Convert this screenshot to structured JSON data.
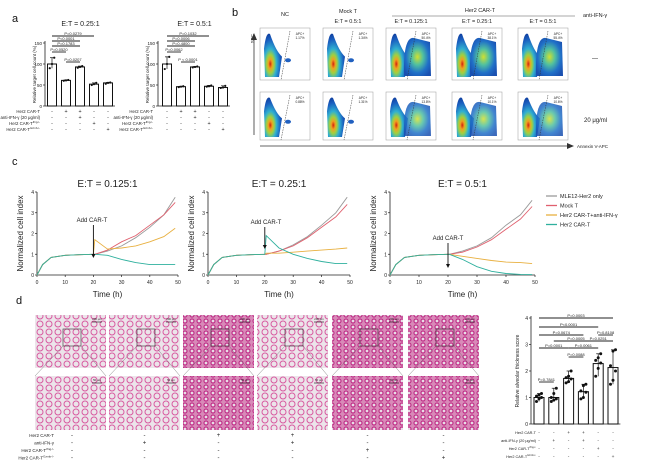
{
  "panels": {
    "a": {
      "label": "a"
    },
    "b": {
      "label": "b",
      "y_axis": "SSC",
      "x_axis": "Annexin V-APC",
      "col_headers": {
        "nc": "NC",
        "mock": "Mock T",
        "mock_et": "E:T = 0.5:1",
        "car": "Her2 CAR-T"
      },
      "car_et": [
        "E:T = 0.125:1",
        "E:T = 0.25:1",
        "E:T = 0.5:1"
      ],
      "row_header": "anti-IFN-γ",
      "rows": [
        "—",
        "20 μg/ml"
      ],
      "gate_label": "APC+",
      "percentages": [
        [
          "1.17%",
          "1.34%",
          "50.4%",
          "38.1%",
          "55.4%"
        ],
        [
          "0.88%",
          "1.31%",
          "13.8%",
          "10.1%",
          "10.6%"
        ]
      ]
    },
    "c": {
      "label": "c",
      "annotation": "Add CAR-T"
    },
    "d": {
      "label": "d",
      "scale_bars": [
        "200 μm",
        "50 μm"
      ],
      "rows": [
        {
          "label": "Her2 CAR-T",
          "signs": [
            "-",
            "-",
            "+",
            "+",
            "-",
            "-"
          ]
        },
        {
          "label": "anti-IFN-γ",
          "signs": [
            "-",
            "+",
            "-",
            "+",
            "-",
            "-"
          ]
        },
        {
          "label": "Her2 CAR-T",
          "sup": "Ifng-/-",
          "signs": [
            "-",
            "-",
            "-",
            "-",
            "+",
            "-"
          ]
        },
        {
          "label": "Her2 CAR-T",
          "sup": "Gzmb-/-",
          "signs": [
            "-",
            "-",
            "-",
            "-",
            "-",
            "+"
          ]
        }
      ]
    }
  },
  "colors": {
    "mle12": "#9a9a9a",
    "mock": "#e0606e",
    "antiifn": "#e8b040",
    "cart": "#2fb09e"
  },
  "chart_data": [
    {
      "id": "a-left",
      "type": "bar",
      "title": "E:T = 0.25:1",
      "ylabel": "Relative target cell count (%)",
      "ylim": [
        0,
        150
      ],
      "yticks": [
        0,
        50,
        100,
        150
      ],
      "values": [
        100,
        61,
        93,
        52,
        55
      ],
      "points": [
        [
          90,
          100,
          115
        ],
        [
          60,
          61,
          62
        ],
        [
          91,
          93,
          95
        ],
        [
          50,
          52,
          55
        ],
        [
          53,
          55,
          56
        ]
      ],
      "pvalues": [
        {
          "text": "P=0.0279",
          "from": 0,
          "to": 3
        },
        {
          "text": "P<0.0001",
          "from": 0,
          "to": 2
        },
        {
          "text": "P=0.1783",
          "from": 0,
          "to": 2
        },
        {
          "text": "P=0.0520",
          "from": 0,
          "to": 1
        },
        {
          "text": "P=0.0207",
          "from": 1,
          "to": 2
        }
      ],
      "rows": [
        {
          "label": "Her2 CAR-T",
          "signs": [
            "-",
            "+",
            "+",
            "-",
            "-"
          ]
        },
        {
          "label": "anti-IFN-γ (20 μg/ml)",
          "signs": [
            "-",
            "-",
            "+",
            "-",
            "-"
          ]
        },
        {
          "label": "Her2 CAR-T",
          "sup": "Ifng-/-",
          "signs": [
            "-",
            "-",
            "-",
            "+",
            "-"
          ]
        },
        {
          "label": "Her2 CAR-T",
          "sup": "Gzmb-/-",
          "signs": [
            "-",
            "-",
            "-",
            "-",
            "+"
          ]
        }
      ]
    },
    {
      "id": "a-right",
      "type": "bar",
      "title": "E:T = 0.5:1",
      "ylabel": "Relative target cell count (%)",
      "ylim": [
        0,
        150
      ],
      "yticks": [
        0,
        50,
        100,
        150
      ],
      "values": [
        100,
        46,
        93,
        47,
        44
      ],
      "points": [
        [
          88,
          100,
          117
        ],
        [
          45,
          46,
          47
        ],
        [
          92,
          93,
          94
        ],
        [
          46,
          47,
          49
        ],
        [
          43,
          44,
          48
        ]
      ],
      "pvalues": [
        {
          "text": "P=0.1032",
          "from": 0,
          "to": 3
        },
        {
          "text": "P=0.0006",
          "from": 0,
          "to": 2
        },
        {
          "text": "P=0.4800",
          "from": 0,
          "to": 2
        },
        {
          "text": "P=0.0062",
          "from": 0,
          "to": 1
        },
        {
          "text": "P < 0.0001",
          "from": 1,
          "to": 2
        }
      ],
      "rows": [
        {
          "label": "Her2 CAR-T",
          "signs": [
            "-",
            "+",
            "+",
            "-",
            "-"
          ]
        },
        {
          "label": "anti-IFN-γ (20 μg/ml)",
          "signs": [
            "-",
            "-",
            "+",
            "-",
            "-"
          ]
        },
        {
          "label": "Her2 CAR-T",
          "sup": "Ifng-/-",
          "signs": [
            "-",
            "-",
            "-",
            "+",
            "-"
          ]
        },
        {
          "label": "Her2 CAR-T",
          "sup": "Gzmb-/-",
          "signs": [
            "-",
            "-",
            "-",
            "-",
            "+"
          ]
        }
      ]
    },
    {
      "id": "c1",
      "type": "line",
      "title": "E:T = 0.125:1",
      "xlabel": "Time (h)",
      "ylabel": "Normalized cell index",
      "xlim": [
        0,
        50
      ],
      "ylim": [
        0,
        4
      ],
      "xticks": [
        0,
        10,
        20,
        30,
        40,
        50
      ],
      "yticks": [
        0,
        1,
        2,
        3,
        4
      ],
      "x": [
        0,
        2,
        5,
        10,
        15,
        20,
        20.5,
        25,
        30,
        35,
        40,
        45,
        49
      ],
      "series": [
        {
          "name": "MLE12-Her2 only",
          "color_key": "mle12",
          "values": [
            0,
            0.5,
            0.85,
            0.95,
            0.98,
            1.0,
            1.0,
            1.15,
            1.4,
            1.8,
            2.3,
            2.9,
            3.75
          ]
        },
        {
          "name": "Mock T",
          "color_key": "mock",
          "values": [
            0,
            0.5,
            0.85,
            0.95,
            0.98,
            1.0,
            1.0,
            1.2,
            1.6,
            1.9,
            2.4,
            2.9,
            3.5
          ]
        },
        {
          "name": "Her2 CAR-T+anti-IFN-γ",
          "color_key": "antiifn",
          "values": [
            0,
            0.5,
            0.85,
            0.95,
            0.98,
            1.0,
            1.7,
            1.25,
            1.3,
            1.4,
            1.6,
            1.85,
            2.25
          ]
        },
        {
          "name": "Her2 CAR-T",
          "color_key": "cart",
          "values": [
            0,
            0.5,
            0.85,
            0.95,
            0.98,
            1.0,
            1.0,
            0.95,
            0.75,
            0.6,
            0.5,
            0.5,
            0.5
          ]
        }
      ],
      "annotation_x": 20
    },
    {
      "id": "c2",
      "type": "line",
      "title": "E:T = 0.25:1",
      "xlabel": "Time (h)",
      "ylabel": "Normalized cell index",
      "xlim": [
        0,
        50
      ],
      "ylim": [
        0,
        4
      ],
      "xticks": [
        0,
        10,
        20,
        30,
        40,
        50
      ],
      "yticks": [
        0,
        1,
        2,
        3,
        4
      ],
      "x": [
        0,
        2,
        5,
        10,
        15,
        20,
        20.5,
        25,
        30,
        35,
        40,
        45,
        49
      ],
      "series": [
        {
          "name": "MLE12-Her2 only",
          "color_key": "mle12",
          "values": [
            0,
            0.5,
            0.85,
            0.95,
            0.98,
            1.0,
            1.0,
            1.15,
            1.45,
            1.85,
            2.4,
            3.0,
            3.75
          ]
        },
        {
          "name": "Mock T",
          "color_key": "mock",
          "values": [
            0,
            0.5,
            0.85,
            0.95,
            0.98,
            1.0,
            1.0,
            1.15,
            1.4,
            1.8,
            2.3,
            2.8,
            3.4
          ]
        },
        {
          "name": "Her2 CAR-T+anti-IFN-γ",
          "color_key": "antiifn",
          "values": [
            0,
            0.5,
            0.85,
            0.95,
            0.98,
            1.0,
            1.05,
            1.05,
            1.1,
            1.15,
            1.2,
            1.25,
            1.3
          ]
        },
        {
          "name": "Her2 CAR-T",
          "color_key": "cart",
          "values": [
            0,
            0.5,
            0.85,
            0.95,
            0.98,
            1.0,
            1.9,
            1.3,
            1.0,
            0.8,
            0.65,
            0.55,
            0.55
          ]
        }
      ],
      "annotation_x": 20
    },
    {
      "id": "c3",
      "type": "line",
      "title": "E:T = 0.5:1",
      "xlabel": "Time (h)",
      "ylabel": "Normalized cell index",
      "xlim": [
        0,
        50
      ],
      "ylim": [
        0,
        4
      ],
      "xticks": [
        0,
        10,
        20,
        30,
        40,
        50
      ],
      "yticks": [
        0,
        1,
        2,
        3,
        4
      ],
      "x": [
        0,
        2,
        5,
        10,
        15,
        20,
        20.5,
        25,
        30,
        35,
        40,
        45,
        49
      ],
      "series": [
        {
          "name": "MLE12-Her2 only",
          "color_key": "mle12",
          "values": [
            0,
            0.5,
            0.85,
            0.95,
            0.98,
            1.0,
            1.0,
            1.15,
            1.4,
            1.8,
            2.4,
            2.9,
            3.6
          ]
        },
        {
          "name": "Mock T",
          "color_key": "mock",
          "values": [
            0,
            0.5,
            0.85,
            0.95,
            0.98,
            1.0,
            1.0,
            1.1,
            1.35,
            1.7,
            2.2,
            2.7,
            3.3
          ]
        },
        {
          "name": "Her2 CAR-T+anti-IFN-γ",
          "color_key": "antiifn",
          "values": [
            0,
            0.5,
            0.85,
            0.95,
            0.98,
            1.0,
            1.0,
            0.9,
            0.8,
            0.7,
            0.62,
            0.6,
            0.55
          ]
        },
        {
          "name": "Her2 CAR-T",
          "color_key": "cart",
          "values": [
            0,
            0.5,
            0.85,
            0.95,
            0.98,
            1.0,
            1.0,
            0.75,
            0.4,
            0.18,
            0.07,
            0.03,
            0.02
          ]
        }
      ],
      "annotation_x": 20,
      "legend": "right"
    },
    {
      "id": "d-bar",
      "type": "bar",
      "ylabel": "Relative alveolar thickness score",
      "ylim": [
        0,
        4
      ],
      "yticks": [
        0,
        1,
        2,
        3,
        4
      ],
      "values": [
        1.0,
        1.0,
        1.72,
        1.22,
        2.28,
        2.13
      ],
      "points": [
        [
          0.85,
          0.95,
          1.0,
          1.05,
          1.1,
          1.15
        ],
        [
          0.85,
          0.9,
          0.95,
          1.0,
          1.15,
          1.35
        ],
        [
          1.55,
          1.6,
          1.7,
          1.75,
          1.8,
          2.0
        ],
        [
          0.95,
          1.0,
          1.2,
          1.25,
          1.45,
          1.5
        ],
        [
          1.8,
          2.1,
          2.3,
          2.4,
          2.5,
          2.65
        ],
        [
          1.5,
          1.65,
          2.0,
          2.2,
          2.75,
          2.8
        ]
      ],
      "pvalues": [
        {
          "text": "P=0.0003",
          "from": 0,
          "to": 5
        },
        {
          "text": "P<0.0001",
          "from": 0,
          "to": 4
        },
        {
          "text": "P=0.0674",
          "from": 0,
          "to": 3
        },
        {
          "text": "P=0.8108",
          "from": 4,
          "to": 5
        },
        {
          "text": "P=0.0005",
          "from": 1,
          "to": 4
        },
        {
          "text": "P=0.0251",
          "from": 3,
          "to": 5
        },
        {
          "text": "P=0.0001",
          "from": 0,
          "to": 2
        },
        {
          "text": "P=0.0061",
          "from": 2,
          "to": 4
        },
        {
          "text": "P=0.0088",
          "from": 2,
          "to": 3
        },
        {
          "text": "P=0.7841",
          "from": 0,
          "to": 1
        }
      ],
      "rows": [
        {
          "label": "Her2 CAR-T",
          "signs": [
            "-",
            "-",
            "+",
            "+",
            "-",
            "-"
          ]
        },
        {
          "label": "anti-IFN-γ (20 μg/ml)",
          "signs": [
            "-",
            "+",
            "-",
            "+",
            "-",
            "-"
          ]
        },
        {
          "label": "Her2 CAR-T",
          "sup": "Ifng-/-",
          "signs": [
            "-",
            "-",
            "-",
            "-",
            "+",
            "-"
          ]
        },
        {
          "label": "Her2 CAR-T",
          "sup": "Gzmb-/-",
          "signs": [
            "-",
            "-",
            "-",
            "-",
            "-",
            "+"
          ]
        }
      ]
    }
  ]
}
